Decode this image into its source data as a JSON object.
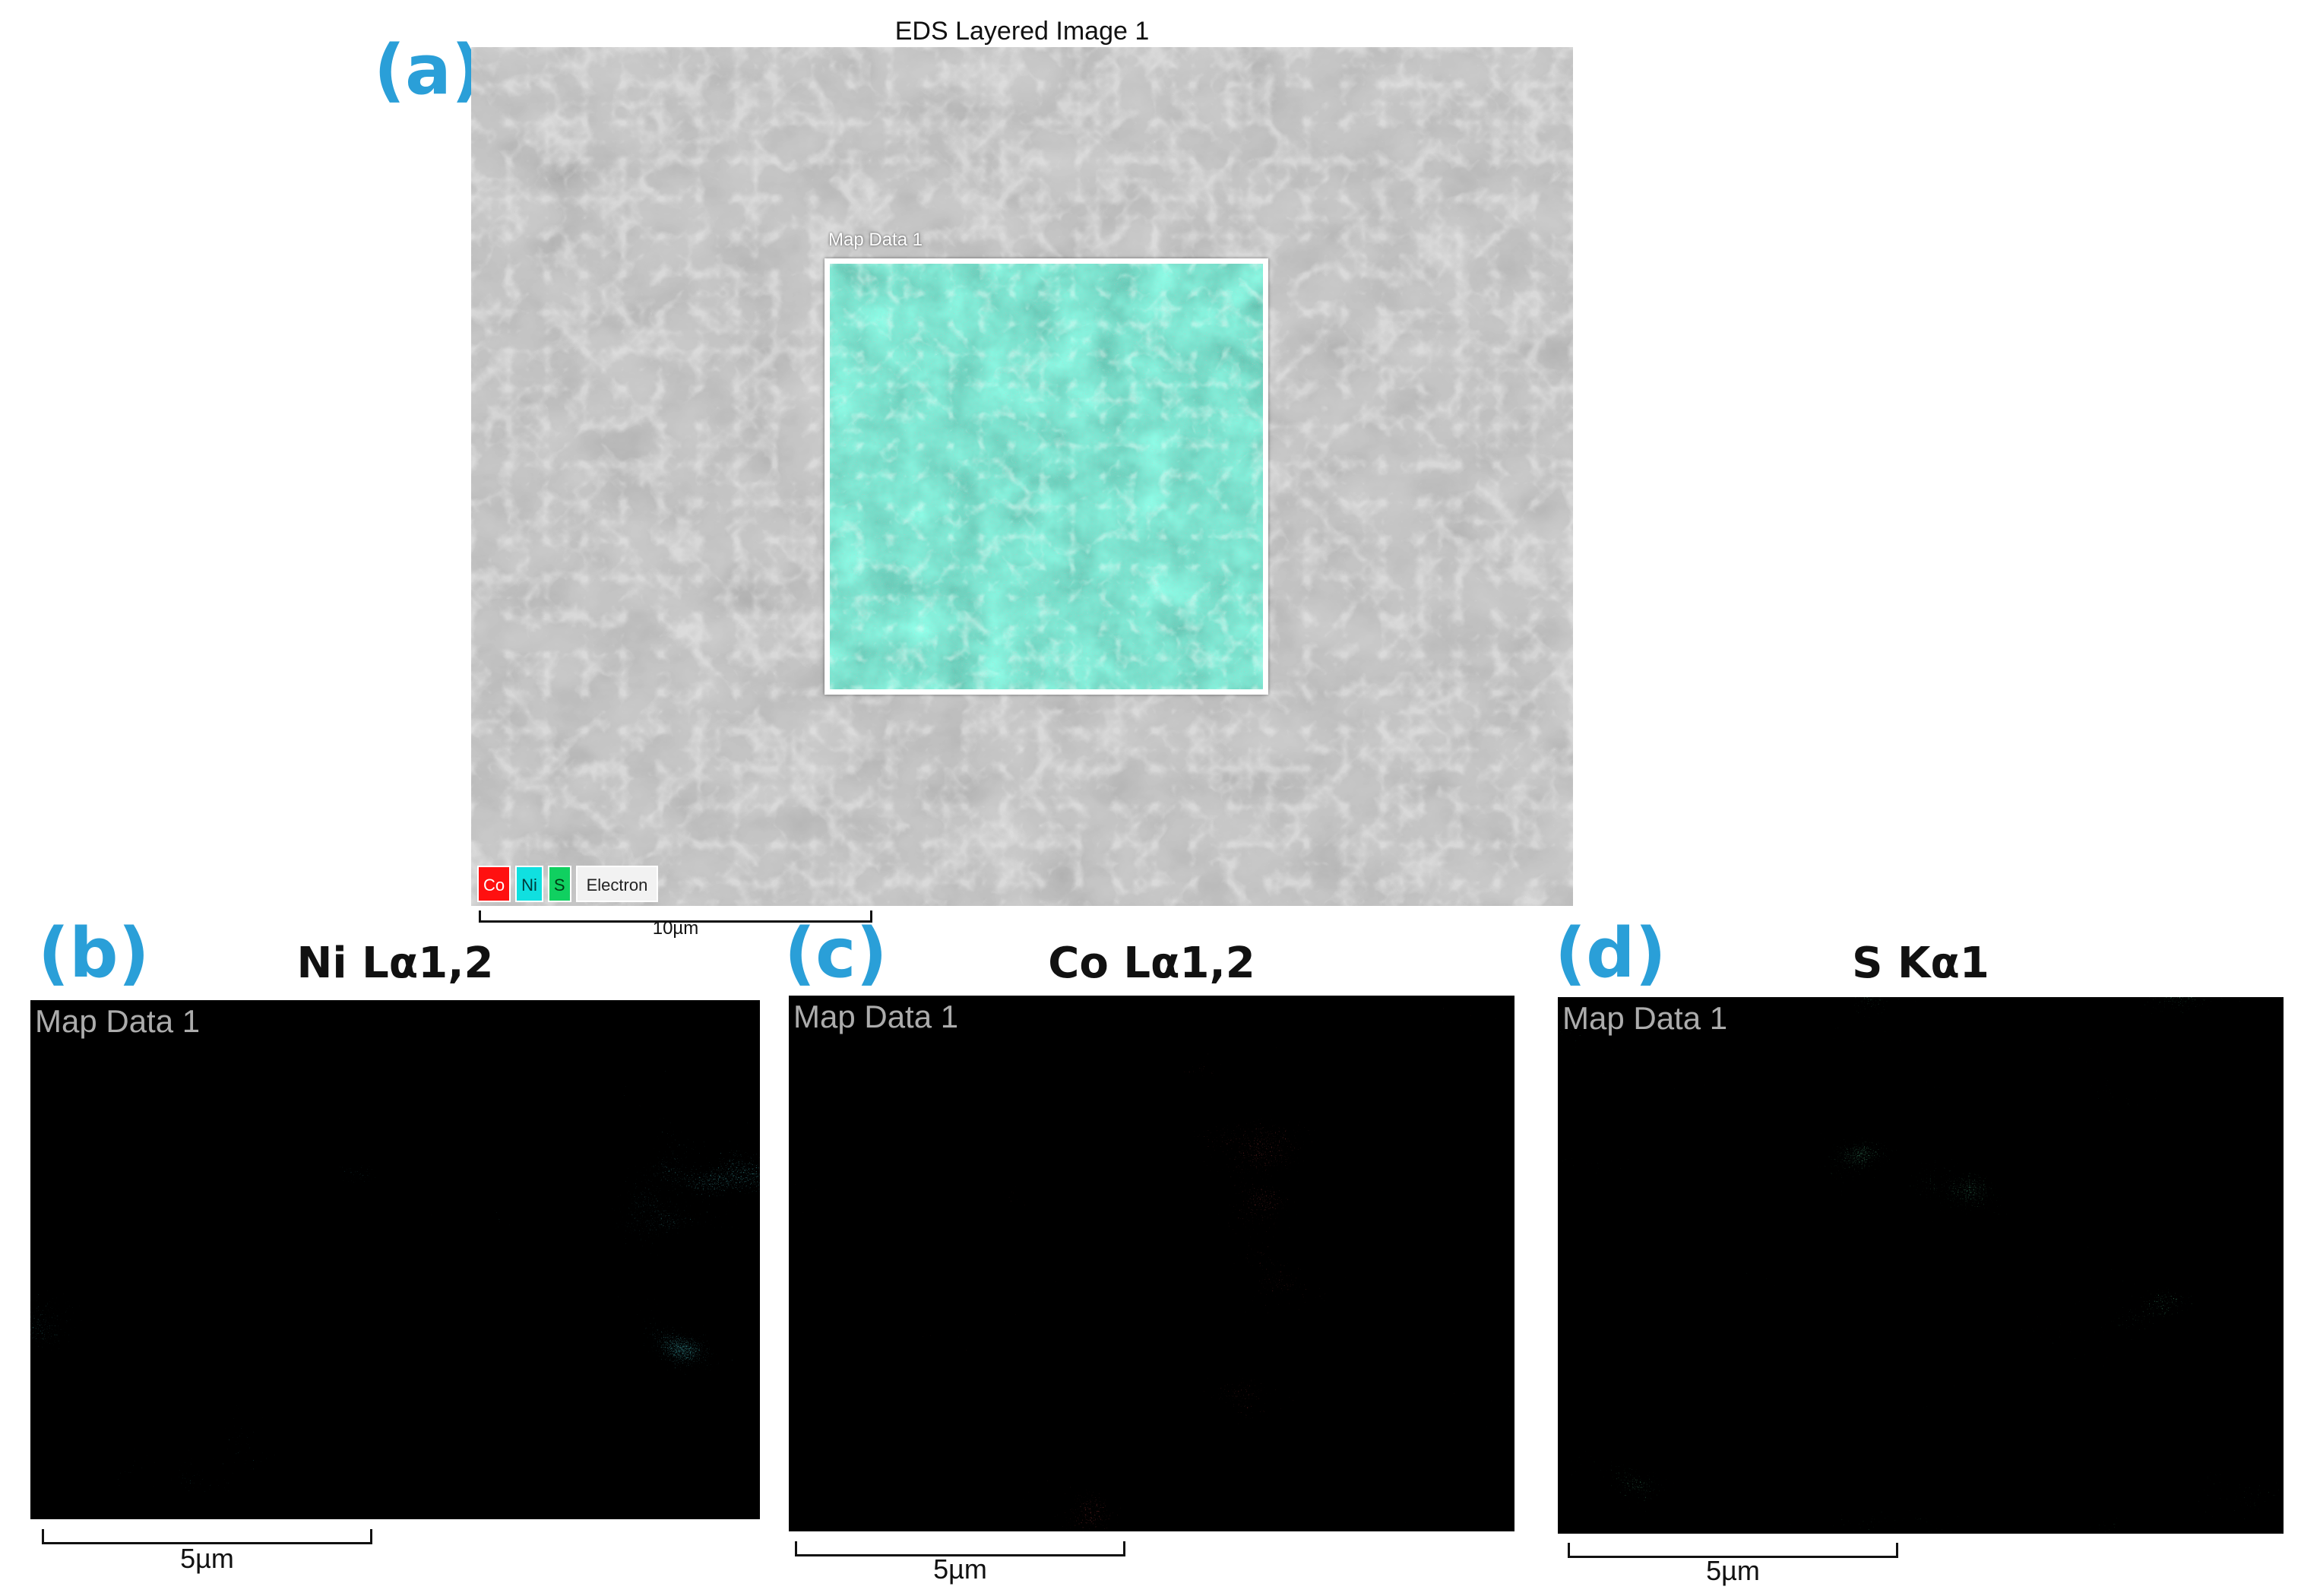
{
  "panels": {
    "a": {
      "letter": "(a)",
      "title": "EDS Layered Image 1",
      "roi_label": "Map Data 1",
      "legend": [
        "Co",
        "Ni",
        "S",
        "Electron"
      ],
      "scale": "10µm"
    },
    "b": {
      "letter": "(b)",
      "title": "Ni Lα1,2",
      "map_label": "Map Data 1",
      "scale": "5µm",
      "color": "#19e0ef"
    },
    "c": {
      "letter": "(c)",
      "title": "Co Lα1,2",
      "map_label": "Map Data 1",
      "scale": "5µm",
      "color": "#ff1b1b"
    },
    "d": {
      "letter": "(d)",
      "title": "S Kα1",
      "map_label": "Map Data 1",
      "scale": "5µm",
      "color": "#1fd66a"
    }
  }
}
